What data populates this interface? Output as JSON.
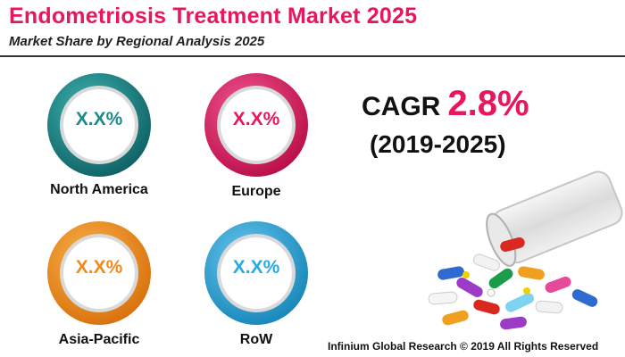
{
  "title": "Endometriosis Treatment Market 2025",
  "subtitle": "Market Share by Regional Analysis 2025",
  "colors": {
    "title": "#e8175d",
    "north_america": "#1a8a8a",
    "europe": "#e8175d",
    "asia_pacific": "#f08a1c",
    "row": "#28a9e1"
  },
  "chart_data": {
    "type": "pie",
    "title": "Market Share by Regional Analysis 2025",
    "categories": [
      "North America",
      "Europe",
      "Asia-Pacific",
      "RoW"
    ],
    "value_labels": [
      "X.X%",
      "X.X%",
      "X.X%",
      "X.X%"
    ]
  },
  "regions": [
    {
      "name": "North America",
      "value": "X.X%"
    },
    {
      "name": "Europe",
      "value": "X.X%"
    },
    {
      "name": "Asia-Pacific",
      "value": "X.X%"
    },
    {
      "name": "RoW",
      "value": "X.X%"
    }
  ],
  "cagr": {
    "label": "CAGR",
    "value": "2.8%",
    "period": "(2019-2025)"
  },
  "footer": "Infinium Global Research © 2019 All Rights Reserved"
}
